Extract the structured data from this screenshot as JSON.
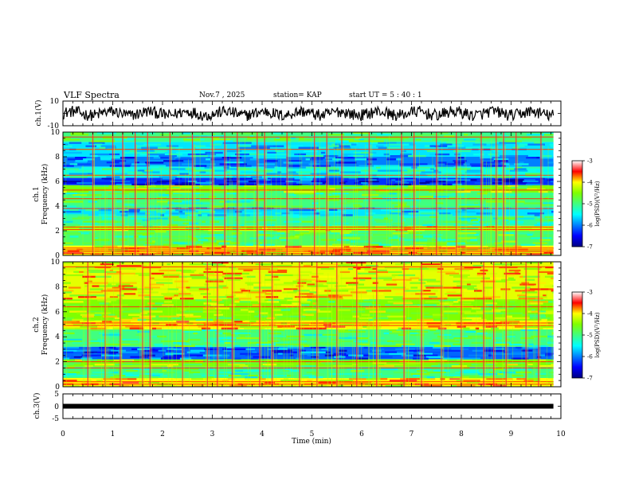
{
  "chart_data": {
    "type": "heatmap",
    "title": "VLF Spectra",
    "date": "Nov.7 , 2025",
    "station_label": "station= KAP",
    "start_label": "start UT = 5 : 40 : 1",
    "xlabel": "Time (min)",
    "x_ticks": [
      "0",
      "1",
      "2",
      "3",
      "4",
      "5",
      "6",
      "7",
      "8",
      "9",
      "10"
    ],
    "xlim": [
      0,
      10
    ],
    "data_end_min": 9.85,
    "waveform_ch1": {
      "ylabel": "ch.1(V)",
      "ylim": [
        -10,
        10
      ],
      "y_ticks": [
        "10",
        "-10"
      ],
      "noise_amplitude_v": 6
    },
    "spectrogram_ch1": {
      "ylabel": "Frequency (kHz)",
      "channel": "ch.1",
      "ylim": [
        0,
        10
      ],
      "y_ticks": [
        "0",
        "2",
        "4",
        "6",
        "8",
        "10"
      ],
      "colorbar_label": "log(PSD)(V²/Hz)",
      "colorbar_ticks": [
        "-3",
        "-4",
        "-5",
        "-6",
        "-7"
      ],
      "color_range": [
        -7,
        -3
      ],
      "bands": [
        {
          "from_khz": 0,
          "to_khz": 0.8,
          "level": -4.0
        },
        {
          "from_khz": 0.8,
          "to_khz": 2.0,
          "level": -4.9
        },
        {
          "from_khz": 2.0,
          "to_khz": 2.4,
          "level": -4.3
        },
        {
          "from_khz": 2.4,
          "to_khz": 3.2,
          "level": -5.1
        },
        {
          "from_khz": 3.2,
          "to_khz": 3.9,
          "level": -5.6
        },
        {
          "from_khz": 3.9,
          "to_khz": 5.1,
          "level": -5.0
        },
        {
          "from_khz": 5.1,
          "to_khz": 5.7,
          "level": -4.5
        },
        {
          "from_khz": 5.7,
          "to_khz": 6.3,
          "level": -6.3
        },
        {
          "from_khz": 6.3,
          "to_khz": 7.2,
          "level": -5.4
        },
        {
          "from_khz": 7.2,
          "to_khz": 8.0,
          "level": -6.0
        },
        {
          "from_khz": 8.0,
          "to_khz": 9.2,
          "level": -5.6
        },
        {
          "from_khz": 9.2,
          "to_khz": 10,
          "level": -5.0
        }
      ],
      "lines_khz": [
        0.15,
        0.3,
        0.45,
        0.6,
        2.1,
        2.3,
        3.8,
        4.6,
        5.3,
        6.5,
        8.6,
        9.6
      ],
      "impulse_times_min": [
        0.6,
        1.0,
        1.2,
        1.45,
        1.7,
        2.15,
        2.6,
        3.0,
        3.25,
        3.5,
        3.9,
        4.05,
        4.5,
        5.05,
        5.3,
        5.6,
        6.15,
        6.8,
        7.05,
        7.5,
        7.9,
        8.4,
        8.7,
        8.85,
        9.1,
        9.6
      ]
    },
    "spectrogram_ch2": {
      "ylabel": "Frequency (kHz)",
      "channel": "ch.2",
      "ylim": [
        0,
        10
      ],
      "y_ticks": [
        "0",
        "2",
        "4",
        "6",
        "8",
        "10"
      ],
      "colorbar_label": "log(PSD)(V²/Hz)",
      "colorbar_ticks": [
        "-3",
        "-4",
        "-5",
        "-6",
        "-7"
      ],
      "color_range": [
        -7,
        -3
      ],
      "bands": [
        {
          "from_khz": 0,
          "to_khz": 0.7,
          "level": -4.0
        },
        {
          "from_khz": 0.7,
          "to_khz": 1.6,
          "level": -5.0
        },
        {
          "from_khz": 1.6,
          "to_khz": 2.2,
          "level": -4.5
        },
        {
          "from_khz": 2.2,
          "to_khz": 3.2,
          "level": -6.1
        },
        {
          "from_khz": 3.2,
          "to_khz": 4.6,
          "level": -5.0
        },
        {
          "from_khz": 4.6,
          "to_khz": 5.3,
          "level": -4.0
        },
        {
          "from_khz": 5.3,
          "to_khz": 7.0,
          "level": -4.5
        },
        {
          "from_khz": 7.0,
          "to_khz": 10,
          "level": -4.1
        }
      ],
      "lines_khz": [
        0.2,
        0.4,
        1.5,
        2.0,
        4.9,
        5.1,
        6.4,
        9.6
      ],
      "impulse_times_min": [
        0.5,
        0.85,
        1.15,
        1.6,
        1.75,
        2.4,
        2.9,
        3.1,
        3.4,
        3.95,
        4.2,
        4.75,
        5.1,
        5.5,
        5.9,
        6.3,
        6.85,
        7.2,
        7.6,
        8.0,
        8.45,
        8.65,
        8.9,
        9.3,
        9.55
      ]
    },
    "waveform_ch3": {
      "ylabel": "ch.3(V)",
      "ylim": [
        -5,
        5
      ],
      "y_ticks": [
        "5",
        "0",
        "-5"
      ],
      "trace_level_v": 0
    }
  }
}
